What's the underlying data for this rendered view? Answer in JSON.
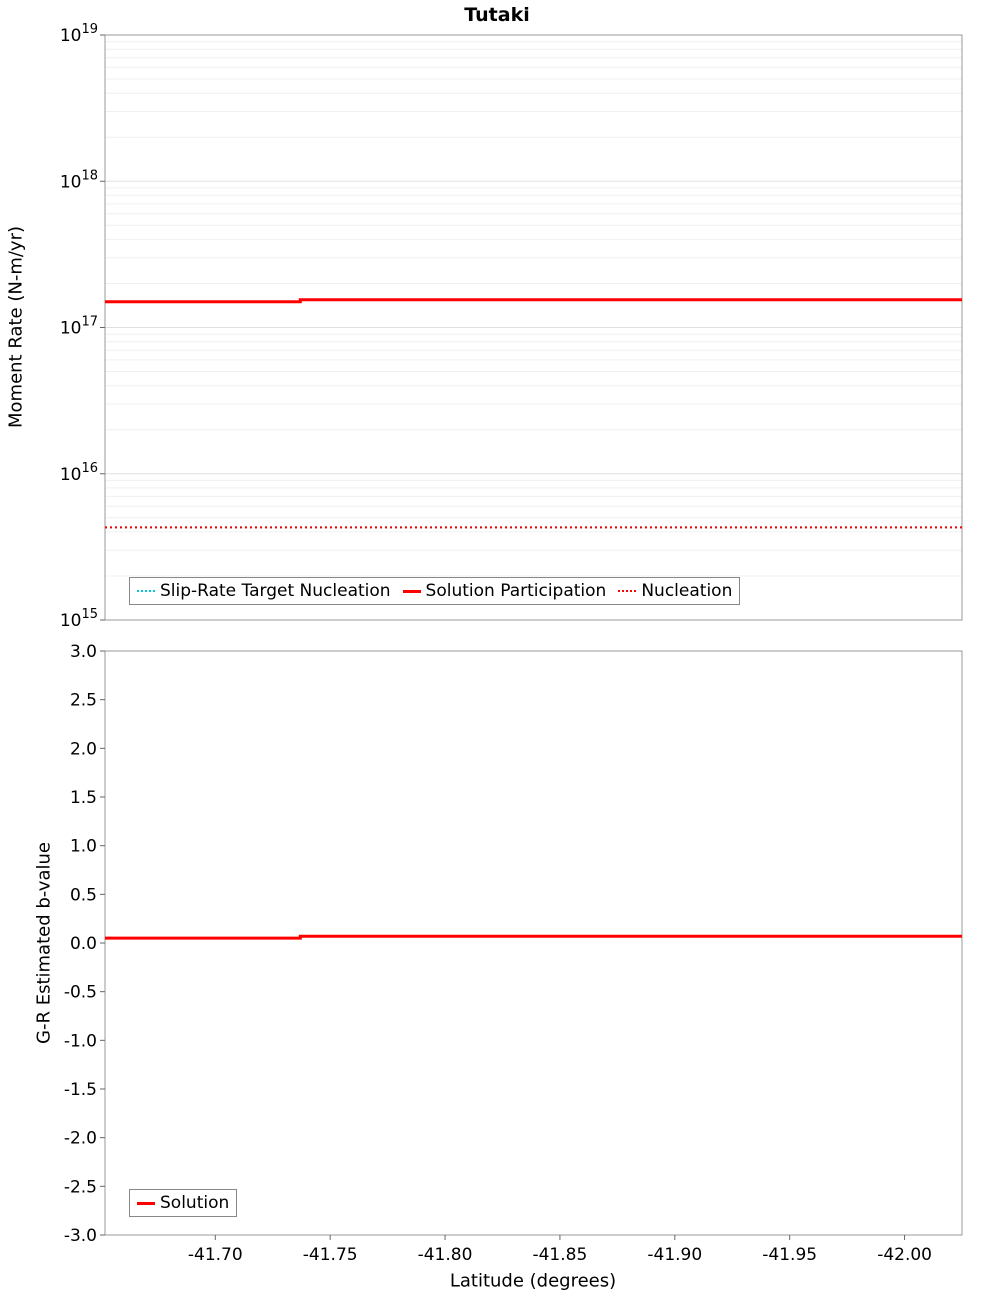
{
  "chart_data": {
    "title": "Tutaki",
    "type": "line",
    "x_axis": {
      "label": "Latitude (degrees)",
      "min": -41.652,
      "max": -42.025,
      "ticks": [
        -41.7,
        -41.75,
        -41.8,
        -41.85,
        -41.9,
        -41.95,
        -42.0
      ],
      "reversed_values": true
    },
    "charts": [
      {
        "y_axis": {
          "label": "Moment Rate (N-m/yr)",
          "scale": "log",
          "min_exp": 15,
          "max_exp": 19
        },
        "grid": true,
        "legend_position": "inside-bottom-left",
        "series": [
          {
            "name": "Slip-Rate Target Nucleation",
            "color": "#00CCDD",
            "style": "dotted",
            "points": [
              [
                -41.652,
                4300000000000000.0
              ],
              [
                -42.025,
                4300000000000000.0
              ]
            ]
          },
          {
            "name": "Solution Participation",
            "color": "#FF0000",
            "style": "solid",
            "points": [
              [
                -41.652,
                1.5e+17
              ],
              [
                -41.737,
                1.5e+17
              ],
              [
                -41.737,
                1.55e+17
              ],
              [
                -42.025,
                1.55e+17
              ]
            ]
          },
          {
            "name": "Nucleation",
            "color": "#FF0000",
            "style": "dotted",
            "points": [
              [
                -41.652,
                4300000000000000.0
              ],
              [
                -42.025,
                4300000000000000.0
              ]
            ]
          }
        ]
      },
      {
        "y_axis": {
          "label": "G-R Estimated b-value",
          "scale": "linear",
          "min": -3.0,
          "max": 3.0,
          "tick_step": 0.5
        },
        "grid": false,
        "legend_position": "inside-bottom-left",
        "series": [
          {
            "name": "Solution",
            "color": "#FF0000",
            "style": "solid",
            "points": [
              [
                -41.652,
                0.05
              ],
              [
                -41.737,
                0.05
              ],
              [
                -41.737,
                0.07
              ],
              [
                -42.025,
                0.07
              ]
            ]
          }
        ]
      }
    ],
    "colors": {
      "grid_minor": "#F0F0F0",
      "grid_major": "#E0E0E0",
      "frame": "#999999",
      "tick": "#666666",
      "text": "#000000"
    }
  }
}
